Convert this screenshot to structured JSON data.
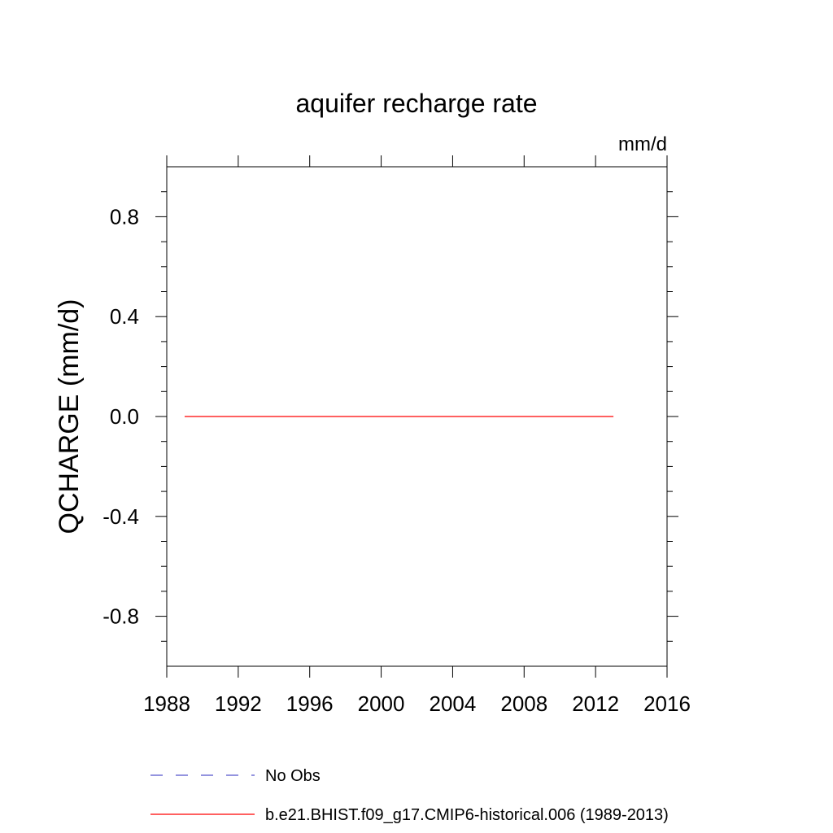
{
  "chart_data": {
    "type": "line",
    "title": "aquifer recharge rate",
    "units_label": "mm/d",
    "xlabel": "",
    "ylabel": "QCHARGE  (mm/d)",
    "xlim": [
      1988,
      2016
    ],
    "ylim": [
      -1.0,
      1.0
    ],
    "x_ticks": [
      1988,
      1992,
      1996,
      2000,
      2004,
      2008,
      2012,
      2016
    ],
    "x_tick_labels": [
      "1988",
      "1992",
      "1996",
      "2000",
      "2004",
      "2008",
      "2012",
      "2016"
    ],
    "y_ticks": [
      0.8,
      0.4,
      0.0,
      -0.4,
      -0.8
    ],
    "y_tick_labels": [
      "0.8",
      "0.4",
      "0.0",
      "-0.4",
      "-0.8"
    ],
    "grid": false,
    "legend_position": "bottom",
    "series": [
      {
        "name": "b.e21.BHIST.f09_g17.CMIP6-historical.006 (1989-2013)",
        "color": "#ff0000",
        "style": "solid",
        "x": [
          1989,
          1990,
          1991,
          1992,
          1993,
          1994,
          1995,
          1996,
          1997,
          1998,
          1999,
          2000,
          2001,
          2002,
          2003,
          2004,
          2005,
          2006,
          2007,
          2008,
          2009,
          2010,
          2011,
          2012,
          2013
        ],
        "y": [
          0,
          0,
          0,
          0,
          0,
          0,
          0,
          0,
          0,
          0,
          0,
          0,
          0,
          0,
          0,
          0,
          0,
          0,
          0,
          0,
          0,
          0,
          0,
          0,
          0
        ]
      }
    ],
    "legend": [
      {
        "label": "No Obs",
        "color": "#5555cc",
        "style": "dashed"
      },
      {
        "label": "b.e21.BHIST.f09_g17.CMIP6-historical.006 (1989-2013)",
        "color": "#ff0000",
        "style": "solid"
      }
    ]
  }
}
